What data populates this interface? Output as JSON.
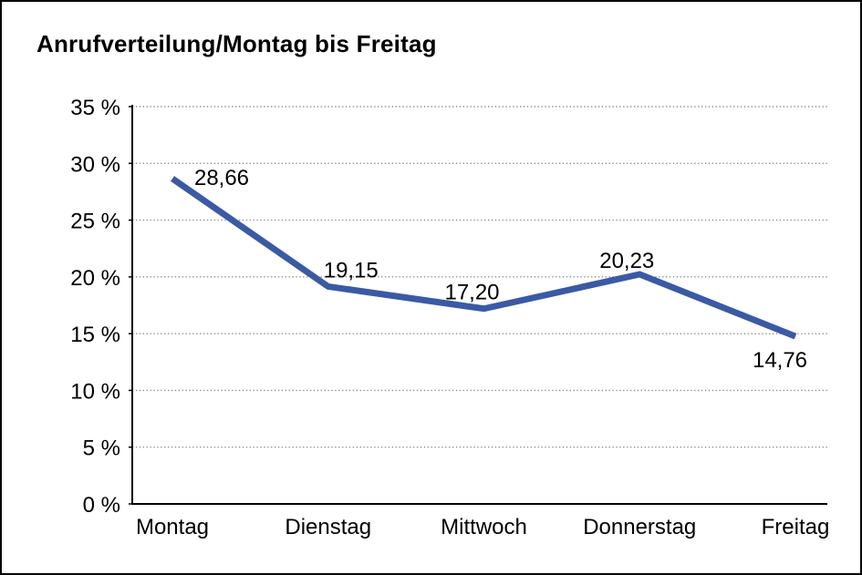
{
  "window": {
    "background": "#ffffff",
    "border_color": "#000000"
  },
  "chart_data": {
    "type": "line",
    "title": "Anrufverteilung/Montag bis Freitag",
    "categories": [
      "Montag",
      "Dienstag",
      "Mittwoch",
      "Donnerstag",
      "Freitag"
    ],
    "values": [
      28.66,
      19.15,
      17.2,
      20.23,
      14.76
    ],
    "value_labels": [
      "28,66",
      "19,15",
      "17,20",
      "20,23",
      "14,76"
    ],
    "y_ticks": [
      {
        "value": 35,
        "label": "35 %"
      },
      {
        "value": 30,
        "label": "30 %"
      },
      {
        "value": 25,
        "label": "25 %"
      },
      {
        "value": 20,
        "label": "20 %"
      },
      {
        "value": 15,
        "label": "15 %"
      },
      {
        "value": 10,
        "label": "10 %"
      },
      {
        "value": 5,
        "label": "5 %"
      },
      {
        "value": 0,
        "label": "0 %"
      }
    ],
    "ylim": [
      0,
      35
    ],
    "xlabel": "",
    "ylabel": "",
    "legend": "none",
    "grid": "horizontal-dotted",
    "colors": {
      "line": "#3A5AA5",
      "grid": "#8A8A8A",
      "axis": "#000000",
      "text": "#000000"
    }
  }
}
